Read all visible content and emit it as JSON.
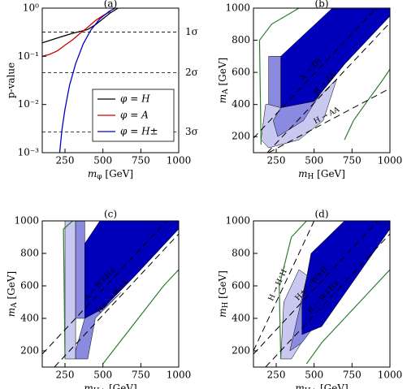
{
  "chart_data": [
    {
      "type": "line",
      "title": "(a)",
      "x_label": {
        "text": "m",
        "sub": "φ",
        "rest": " [GeV]"
      },
      "y_label": "p-value",
      "xlim": [
        100,
        1000
      ],
      "xticks": [
        250,
        500,
        750,
        1000
      ],
      "ylim": [
        0.001,
        1
      ],
      "log_y": true,
      "yticks": [
        {
          "value": 0.001,
          "label": "10⁻³"
        },
        {
          "value": 0.01,
          "label": "10⁻²"
        },
        {
          "value": 0.1,
          "label": "10⁻¹"
        },
        {
          "value": 1,
          "label": "10⁰"
        }
      ],
      "sigma_lines": [
        {
          "value": 0.3173,
          "label": "1σ"
        },
        {
          "value": 0.0455,
          "label": "2σ"
        },
        {
          "value": 0.0027,
          "label": "3σ"
        }
      ],
      "series": [
        {
          "name": "φ = H",
          "color": "#000000",
          "x": [
            100,
            200,
            300,
            400,
            450,
            500,
            550,
            600
          ],
          "y": [
            0.19,
            0.24,
            0.3,
            0.36,
            0.45,
            0.6,
            0.8,
            1.0
          ]
        },
        {
          "name": "φ = A",
          "color": "#cc0000",
          "x": [
            100,
            150,
            200,
            250,
            300,
            350,
            400,
            450,
            500,
            550
          ],
          "y": [
            0.1,
            0.11,
            0.13,
            0.17,
            0.22,
            0.3,
            0.4,
            0.55,
            0.7,
            0.85
          ]
        },
        {
          "name": "φ = H±",
          "color": "#0000cc",
          "x": [
            215,
            230,
            250,
            280,
            320,
            370,
            420,
            480,
            540,
            580
          ],
          "y": [
            0.001,
            0.003,
            0.008,
            0.025,
            0.07,
            0.18,
            0.35,
            0.6,
            0.85,
            1.0
          ]
        }
      ]
    },
    {
      "type": "area",
      "title": "(b)",
      "x_label": {
        "text": "m",
        "sub": "H",
        "rest": " [GeV]"
      },
      "y_label": {
        "text": "m",
        "sub": "A",
        "rest": " [GeV]"
      },
      "xlim": [
        100,
        1000
      ],
      "xticks": [
        250,
        500,
        750,
        1000
      ],
      "ylim": [
        100,
        1000
      ],
      "yticks": [
        200,
        400,
        600,
        800,
        1000
      ],
      "regions": [
        {
          "fill": "#c8c8f0",
          "x": [
            150,
            180,
            300,
            500,
            650,
            560,
            400,
            200
          ],
          "y": [
            180,
            400,
            420,
            420,
            560,
            300,
            180,
            130
          ]
        },
        {
          "fill": "#8a8ae0",
          "x": [
            230,
            280,
            500,
            700,
            600,
            430,
            260
          ],
          "y": [
            300,
            380,
            420,
            650,
            560,
            300,
            200
          ]
        },
        {
          "fill": "#0000bb",
          "x": [
            280,
            500,
            700,
            1000,
            1000,
            620,
            450,
            280
          ],
          "y": [
            380,
            420,
            650,
            950,
            1000,
            1000,
            850,
            700
          ]
        },
        {
          "fill": "#8a8ae0",
          "x": [
            200,
            280,
            280,
            200
          ],
          "y": [
            700,
            700,
            380,
            400
          ]
        },
        {
          "stroke": "#2e7d2e",
          "x": [
            150,
            140,
            220,
            400,
            550,
            700,
            850,
            1000
          ],
          "y": [
            150,
            800,
            900,
            1000,
            1000,
            1000,
            1000,
            1000
          ]
        },
        {
          "stroke": "#2e7d2e",
          "x": [
            700,
            760,
            850,
            950,
            1000
          ],
          "y": [
            180,
            300,
            420,
            550,
            620
          ]
        }
      ],
      "dashed": [
        {
          "label": "A → ZH",
          "x": [
            100,
            909
          ],
          "y": [
            191,
            1000
          ]
        },
        {
          "label": "H → ZA",
          "x": [
            191,
            1000
          ],
          "y": [
            100,
            909
          ]
        },
        {
          "label": "H → AA",
          "x": [
            200,
            1000
          ],
          "y": [
            100,
            500
          ]
        }
      ]
    },
    {
      "type": "area",
      "title": "(c)",
      "x_label": {
        "text": "m",
        "sub": "H±",
        "rest": " [GeV]"
      },
      "y_label": {
        "text": "m",
        "sub": "A",
        "rest": " [GeV]"
      },
      "xlim": [
        100,
        1000
      ],
      "xticks": [
        250,
        500,
        750,
        1000
      ],
      "ylim": [
        100,
        1000
      ],
      "yticks": [
        200,
        400,
        600,
        800,
        1000
      ],
      "regions": [
        {
          "fill": "#c8c8f0",
          "x": [
            250,
            320,
            320,
            250
          ],
          "y": [
            150,
            150,
            1000,
            1000
          ]
        },
        {
          "fill": "#8a8ae0",
          "x": [
            320,
            380,
            500,
            620,
            450,
            400,
            320
          ],
          "y": [
            200,
            400,
            460,
            560,
            400,
            150,
            150
          ]
        },
        {
          "fill": "#8a8ae0",
          "x": [
            320,
            380,
            380,
            320
          ],
          "y": [
            400,
            400,
            1000,
            1000
          ]
        },
        {
          "fill": "#0000bb",
          "x": [
            380,
            500,
            700,
            1000,
            1000,
            480,
            380
          ],
          "y": [
            400,
            460,
            650,
            950,
            1000,
            1000,
            860
          ]
        },
        {
          "stroke": "#2e7d2e",
          "x": [
            250,
            240,
            300,
            350,
            380
          ],
          "y": [
            150,
            950,
            1000,
            1000,
            1000
          ]
        },
        {
          "stroke": "#2e7d2e",
          "x": [
            500,
            600,
            700,
            800,
            900,
            1000
          ],
          "y": [
            120,
            240,
            360,
            480,
            600,
            700
          ]
        }
      ],
      "dashed": [
        {
          "label": "A → W∓H±",
          "x": [
            100,
            920
          ],
          "y": [
            180,
            1000
          ]
        },
        {
          "label": "H± → W±A",
          "x": [
            180,
            1000
          ],
          "y": [
            100,
            920
          ]
        }
      ]
    },
    {
      "type": "area",
      "title": "(d)",
      "x_label": {
        "text": "m",
        "sub": "H±",
        "rest": " [GeV]"
      },
      "y_label": {
        "text": "m",
        "sub": "H",
        "rest": " [GeV]"
      },
      "xlim": [
        100,
        1000
      ],
      "xticks": [
        250,
        500,
        750,
        1000
      ],
      "ylim": [
        100,
        1000
      ],
      "yticks": [
        200,
        400,
        600,
        800,
        1000
      ],
      "regions": [
        {
          "fill": "#c8c8f0",
          "x": [
            280,
            350,
            450,
            550,
            400,
            300
          ],
          "y": [
            150,
            150,
            300,
            600,
            700,
            500
          ]
        },
        {
          "fill": "#8a8ae0",
          "x": [
            340,
            420,
            500,
            650,
            800,
            600,
            450
          ],
          "y": [
            200,
            250,
            350,
            550,
            900,
            900,
            650
          ]
        },
        {
          "fill": "#0000bb",
          "x": [
            420,
            550,
            700,
            1000,
            1000,
            700,
            480,
            420
          ],
          "y": [
            300,
            350,
            550,
            950,
            1000,
            1000,
            800,
            500
          ]
        },
        {
          "stroke": "#2e7d2e",
          "x": [
            280,
            270,
            350,
            450,
            600,
            700
          ],
          "y": [
            150,
            600,
            900,
            1000,
            1000,
            1000
          ]
        },
        {
          "stroke": "#2e7d2e",
          "x": [
            450,
            550,
            700,
            800,
            900,
            1000
          ],
          "y": [
            120,
            250,
            400,
            500,
            600,
            700
          ]
        }
      ],
      "dashed": [
        {
          "label": "H± → W±H",
          "x": [
            100,
            920
          ],
          "y": [
            180,
            1000
          ]
        },
        {
          "label": "H → W∓H±",
          "x": [
            180,
            1000
          ],
          "y": [
            100,
            920
          ]
        },
        {
          "label": "H → H⁺H⁻",
          "x": [
            100,
            500
          ],
          "y": [
            200,
            1000
          ]
        }
      ]
    }
  ]
}
